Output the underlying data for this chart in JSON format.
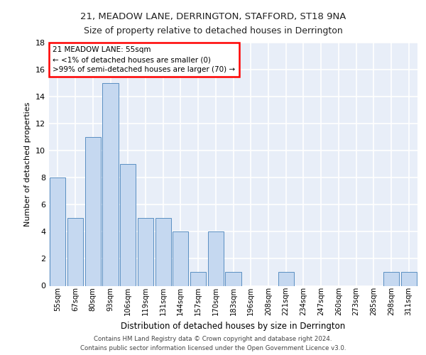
{
  "title1": "21, MEADOW LANE, DERRINGTON, STAFFORD, ST18 9NA",
  "title2": "Size of property relative to detached houses in Derrington",
  "xlabel": "Distribution of detached houses by size in Derrington",
  "ylabel": "Number of detached properties",
  "bar_labels": [
    "55sqm",
    "67sqm",
    "80sqm",
    "93sqm",
    "106sqm",
    "119sqm",
    "131sqm",
    "144sqm",
    "157sqm",
    "170sqm",
    "183sqm",
    "196sqm",
    "208sqm",
    "221sqm",
    "234sqm",
    "247sqm",
    "260sqm",
    "273sqm",
    "285sqm",
    "298sqm",
    "311sqm"
  ],
  "bar_values": [
    8,
    5,
    11,
    15,
    9,
    5,
    5,
    4,
    1,
    4,
    1,
    0,
    0,
    1,
    0,
    0,
    0,
    0,
    0,
    1,
    1
  ],
  "bar_color": "#c5d8f0",
  "bar_edge_color": "#5a8fc2",
  "annotation_box_text": "21 MEADOW LANE: 55sqm\n← <1% of detached houses are smaller (0)\n>99% of semi-detached houses are larger (70) →",
  "background_color": "#e8eef8",
  "grid_color": "#ffffff",
  "ylim": [
    0,
    18
  ],
  "yticks": [
    0,
    2,
    4,
    6,
    8,
    10,
    12,
    14,
    16,
    18
  ],
  "footer_line1": "Contains HM Land Registry data © Crown copyright and database right 2024.",
  "footer_line2": "Contains public sector information licensed under the Open Government Licence v3.0."
}
